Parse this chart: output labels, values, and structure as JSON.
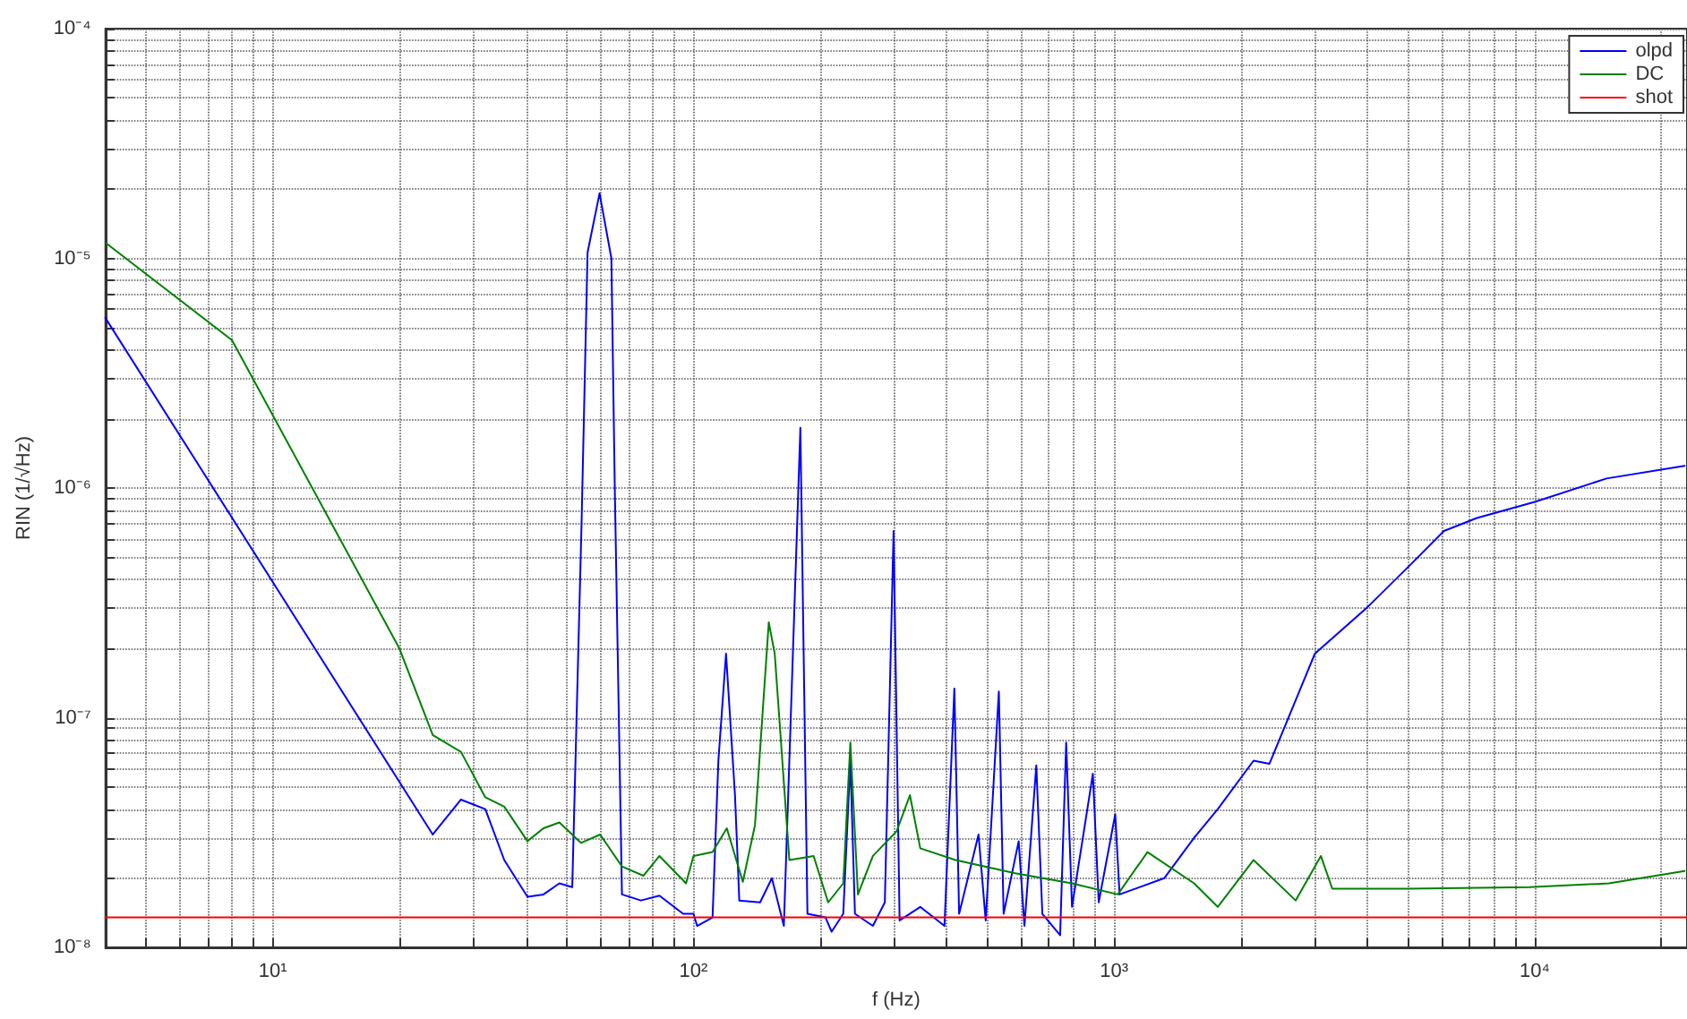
{
  "chart_data": {
    "type": "line",
    "xlabel": "f (Hz)",
    "ylabel": "RIN (1/√Hz)",
    "log": "xy",
    "grid": true,
    "legend": "top right",
    "marker": "none",
    "line_style": "solid",
    "xlim": [
      4,
      23000
    ],
    "ylim": [
      1e-08,
      0.0001
    ],
    "xticks": [
      {
        "value": 4,
        "label": null
      },
      {
        "value": 5,
        "label": null
      },
      {
        "value": 6,
        "label": null
      },
      {
        "value": 7,
        "label": null
      },
      {
        "value": 8,
        "label": null
      },
      {
        "value": 9,
        "label": null
      },
      {
        "value": 10,
        "label": "10¹"
      },
      {
        "value": 20,
        "label": null
      },
      {
        "value": 30,
        "label": null
      },
      {
        "value": 40,
        "label": null
      },
      {
        "value": 50,
        "label": null
      },
      {
        "value": 60,
        "label": null
      },
      {
        "value": 70,
        "label": null
      },
      {
        "value": 80,
        "label": null
      },
      {
        "value": 90,
        "label": null
      },
      {
        "value": 100,
        "label": "10²"
      },
      {
        "value": 200,
        "label": null
      },
      {
        "value": 300,
        "label": null
      },
      {
        "value": 400,
        "label": null
      },
      {
        "value": 500,
        "label": null
      },
      {
        "value": 600,
        "label": null
      },
      {
        "value": 700,
        "label": null
      },
      {
        "value": 800,
        "label": null
      },
      {
        "value": 900,
        "label": null
      },
      {
        "value": 1000,
        "label": "10³"
      },
      {
        "value": 2000,
        "label": null
      },
      {
        "value": 3000,
        "label": null
      },
      {
        "value": 4000,
        "label": null
      },
      {
        "value": 5000,
        "label": null
      },
      {
        "value": 6000,
        "label": null
      },
      {
        "value": 7000,
        "label": null
      },
      {
        "value": 8000,
        "label": null
      },
      {
        "value": 9000,
        "label": null
      },
      {
        "value": 10000,
        "label": "10⁴"
      },
      {
        "value": 20000,
        "label": null
      }
    ],
    "yticks": [
      {
        "value": 1e-08,
        "label": "10⁻⁸"
      },
      {
        "value": 2e-08,
        "label": null
      },
      {
        "value": 3e-08,
        "label": null
      },
      {
        "value": 4e-08,
        "label": null
      },
      {
        "value": 5e-08,
        "label": null
      },
      {
        "value": 6e-08,
        "label": null
      },
      {
        "value": 7e-08,
        "label": null
      },
      {
        "value": 8e-08,
        "label": null
      },
      {
        "value": 9e-08,
        "label": null
      },
      {
        "value": 1e-07,
        "label": "10⁻⁷"
      },
      {
        "value": 2e-07,
        "label": null
      },
      {
        "value": 3e-07,
        "label": null
      },
      {
        "value": 4e-07,
        "label": null
      },
      {
        "value": 5e-07,
        "label": null
      },
      {
        "value": 6e-07,
        "label": null
      },
      {
        "value": 7e-07,
        "label": null
      },
      {
        "value": 8e-07,
        "label": null
      },
      {
        "value": 9e-07,
        "label": null
      },
      {
        "value": 1e-06,
        "label": "10⁻⁶"
      },
      {
        "value": 2e-06,
        "label": null
      },
      {
        "value": 3e-06,
        "label": null
      },
      {
        "value": 4e-06,
        "label": null
      },
      {
        "value": 5e-06,
        "label": null
      },
      {
        "value": 6e-06,
        "label": null
      },
      {
        "value": 7e-06,
        "label": null
      },
      {
        "value": 8e-06,
        "label": null
      },
      {
        "value": 9e-06,
        "label": null
      },
      {
        "value": 1e-05,
        "label": "10⁻⁵"
      },
      {
        "value": 2e-05,
        "label": null
      },
      {
        "value": 3e-05,
        "label": null
      },
      {
        "value": 4e-05,
        "label": null
      },
      {
        "value": 5e-05,
        "label": null
      },
      {
        "value": 6e-05,
        "label": null
      },
      {
        "value": 7e-05,
        "label": null
      },
      {
        "value": 8e-05,
        "label": null
      },
      {
        "value": 9e-05,
        "label": null
      },
      {
        "value": 0.0001,
        "label": "10⁻⁴"
      }
    ],
    "series": [
      {
        "name": "olpd",
        "color": "#0000ff",
        "x": [
          4,
          24,
          28,
          32,
          35.5,
          40.3,
          44,
          48,
          51.5,
          54.2,
          56,
          59.8,
          63.8,
          65,
          67.6,
          75,
          83,
          94.5,
          100,
          102,
          111,
          114.6,
          119.5,
          125.5,
          128.5,
          144,
          153.6,
          164,
          179.5,
          186.6,
          206,
          213,
          227,
          236,
          242,
          267,
          285,
          299,
          309,
          346,
          395,
          417,
          428,
          476,
          495,
          532,
          546,
          593,
          612,
          653,
          675,
          744,
          769,
          794,
          890,
          919,
          1006,
          1030,
          1315,
          1549,
          1763,
          2145,
          2340,
          3000,
          3980,
          5100,
          6080,
          7280,
          10000,
          14800,
          22700
        ],
        "values": [
          5.5e-06,
          3.1e-08,
          4.4e-08,
          4e-08,
          2.4e-08,
          1.66e-08,
          1.7e-08,
          1.9e-08,
          1.83e-08,
          7.1e-07,
          1.06e-05,
          1.92e-05,
          1e-05,
          1e-06,
          1.7e-08,
          1.6e-08,
          1.68e-08,
          1.4e-08,
          1.4e-08,
          1.24e-08,
          1.35e-08,
          6.5e-08,
          1.9e-07,
          4.6e-08,
          1.6e-08,
          1.57e-08,
          2e-08,
          1.24e-08,
          1.83e-06,
          1.4e-08,
          1.35e-08,
          1.17e-08,
          1.4e-08,
          6.5e-08,
          1.4e-08,
          1.24e-08,
          1.57e-08,
          6.5e-07,
          1.31e-08,
          1.5e-08,
          1.24e-08,
          1.34e-07,
          1.4e-08,
          3.1e-08,
          1.31e-08,
          1.3e-07,
          1.4e-08,
          2.9e-08,
          1.24e-08,
          6.2e-08,
          1.4e-08,
          1.13e-08,
          7.8e-08,
          1.5e-08,
          5.7e-08,
          1.57e-08,
          3.8e-08,
          1.7e-08,
          2e-08,
          3e-08,
          4e-08,
          6.5e-08,
          6.3e-08,
          1.9e-07,
          3e-07,
          4.7e-07,
          6.5e-07,
          7.4e-07,
          8.7e-07,
          1.1e-06,
          1.25e-06
        ]
      },
      {
        "name": "DC",
        "color": "#008000",
        "x": [
          4,
          8,
          20,
          24,
          28,
          32,
          35.5,
          40.3,
          44,
          48,
          54,
          60,
          67.6,
          76,
          83,
          96,
          100,
          111,
          120,
          131,
          140,
          151,
          156,
          169,
          193,
          209,
          227,
          236,
          246,
          267,
          304,
          327,
          346,
          420,
          582,
          794,
          1020,
          1200,
          1549,
          1763,
          2145,
          2700,
          3100,
          3300,
          5000,
          9700,
          15000,
          22700
        ],
        "values": [
          1.17e-05,
          4.4e-06,
          2e-07,
          8.4e-08,
          7.1e-08,
          4.5e-08,
          4.1e-08,
          2.9e-08,
          3.3e-08,
          3.5e-08,
          2.85e-08,
          3.1e-08,
          2.25e-08,
          2.05e-08,
          2.5e-08,
          1.9e-08,
          2.5e-08,
          2.6e-08,
          3.3e-08,
          1.93e-08,
          3.4e-08,
          2.6e-07,
          1.9e-07,
          2.4e-08,
          2.5e-08,
          1.57e-08,
          1.9e-08,
          7.8e-08,
          1.7e-08,
          2.5e-08,
          3.2e-08,
          4.6e-08,
          2.7e-08,
          2.4e-08,
          2.1e-08,
          1.9e-08,
          1.7e-08,
          2.6e-08,
          1.9e-08,
          1.5e-08,
          2.4e-08,
          1.6e-08,
          2.5e-08,
          1.8e-08,
          1.8e-08,
          1.83e-08,
          1.9e-08,
          2.15e-08
        ]
      },
      {
        "name": "shot",
        "color": "#ff0000",
        "x": [
          4,
          23000
        ],
        "values": [
          1.35e-08,
          1.35e-08
        ]
      }
    ]
  }
}
